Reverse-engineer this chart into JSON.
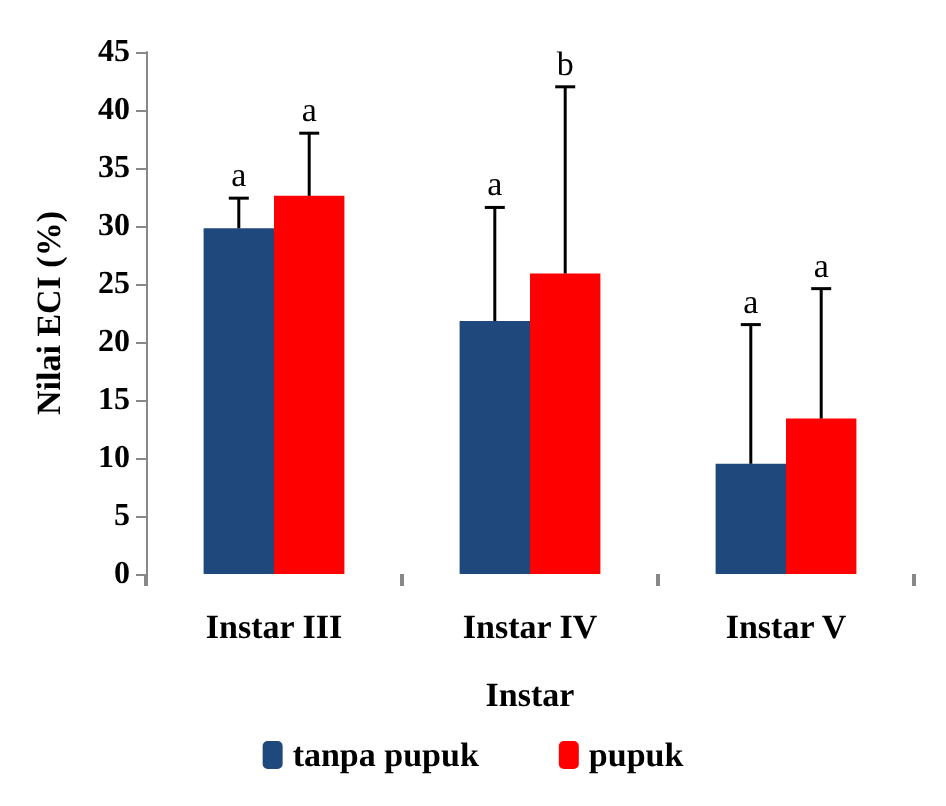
{
  "chart_data": {
    "type": "bar",
    "xlabel": "Instar",
    "ylabel": "Nilai ECI (%)",
    "categories": [
      "Instar III",
      "Instar IV",
      "Instar V"
    ],
    "series": [
      {
        "name": "tanpa pupuk",
        "color": "#1f497d",
        "values": [
          29.8,
          21.8,
          9.5
        ],
        "errors": [
          [
            29.8,
            32.4
          ],
          [
            21.8,
            31.6
          ],
          [
            9.5,
            21.5
          ]
        ]
      },
      {
        "name": "pupuk",
        "color": "#ff0000",
        "values": [
          32.6,
          25.9,
          13.4
        ],
        "errors": [
          [
            32.6,
            38.0
          ],
          [
            25.9,
            42.0
          ],
          [
            13.4,
            24.6
          ]
        ]
      }
    ],
    "ylim": [
      0,
      45
    ],
    "yticks": [
      0,
      5,
      10,
      15,
      20,
      25,
      30,
      35,
      40,
      45
    ],
    "grid": false,
    "legend": "bottom",
    "annotations": [
      "a",
      "a",
      "a",
      "b",
      "a",
      "a"
    ]
  }
}
